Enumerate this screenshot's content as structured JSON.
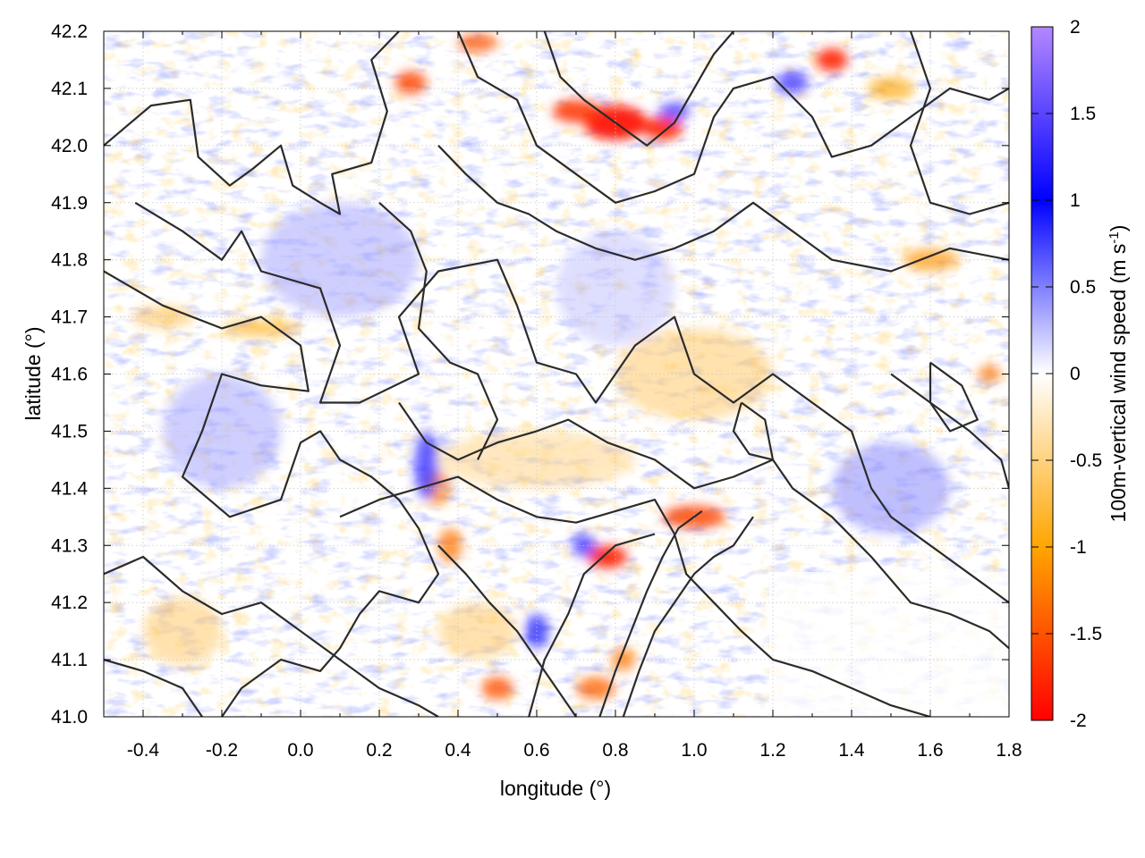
{
  "chart_data": {
    "type": "heatmap",
    "xlabel": "longitude (°)",
    "ylabel": "latitude (°)",
    "colorbar_label": "100m-vertical wind speed (m s",
    "colorbar_label_sup": "-1",
    "colorbar_label_end": ")",
    "xlim": [
      -0.5,
      1.8
    ],
    "ylim": [
      41.0,
      42.2
    ],
    "x_ticks": [
      "-0.4",
      "-0.2",
      "0.0",
      "0.2",
      "0.4",
      "0.6",
      "0.8",
      "1.0",
      "1.2",
      "1.4",
      "1.6",
      "1.8"
    ],
    "x_tick_values": [
      -0.4,
      -0.2,
      0.0,
      0.2,
      0.4,
      0.6,
      0.8,
      1.0,
      1.2,
      1.4,
      1.6,
      1.8
    ],
    "y_ticks": [
      "41.0",
      "41.1",
      "41.2",
      "41.3",
      "41.4",
      "41.5",
      "41.6",
      "41.7",
      "41.8",
      "41.9",
      "42.0",
      "42.1",
      "42.2"
    ],
    "y_tick_values": [
      41.0,
      41.1,
      41.2,
      41.3,
      41.4,
      41.5,
      41.6,
      41.7,
      41.8,
      41.9,
      42.0,
      42.1,
      42.2
    ],
    "colorbar_ticks": [
      "2",
      "1.5",
      "1",
      "0.5",
      "0",
      "-0.5",
      "-1",
      "-1.5",
      "-2"
    ],
    "colorbar_tick_values": [
      2,
      1.5,
      1,
      0.5,
      0,
      -0.5,
      -1,
      -1.5,
      -2
    ],
    "zlim": [
      -2,
      2
    ],
    "grid": true,
    "colormap": [
      {
        "value": -2.0,
        "color": "#ff0000"
      },
      {
        "value": -1.0,
        "color": "#ffa500"
      },
      {
        "value": 0.0,
        "color": "#ffffff"
      },
      {
        "value": 1.0,
        "color": "#0000ff"
      },
      {
        "value": 2.0,
        "color": "#b388ff"
      }
    ],
    "contour_color": "#2b2b2b",
    "features": [
      {
        "lon": 0.8,
        "lat": 42.04,
        "value": -1.9,
        "rx": 0.08,
        "ry": 0.03
      },
      {
        "lon": 0.7,
        "lat": 42.06,
        "value": -1.7,
        "rx": 0.06,
        "ry": 0.02
      },
      {
        "lon": 0.92,
        "lat": 42.03,
        "value": -1.8,
        "rx": 0.05,
        "ry": 0.02
      },
      {
        "lon": 0.95,
        "lat": 42.06,
        "value": 1.3,
        "rx": 0.04,
        "ry": 0.015
      },
      {
        "lon": 0.28,
        "lat": 42.11,
        "value": -1.6,
        "rx": 0.04,
        "ry": 0.02
      },
      {
        "lon": 0.45,
        "lat": 42.18,
        "value": -1.5,
        "rx": 0.05,
        "ry": 0.015
      },
      {
        "lon": 1.35,
        "lat": 42.15,
        "value": -1.8,
        "rx": 0.04,
        "ry": 0.02
      },
      {
        "lon": 1.25,
        "lat": 42.11,
        "value": 1.3,
        "rx": 0.04,
        "ry": 0.02
      },
      {
        "lon": 1.5,
        "lat": 42.1,
        "value": -1.0,
        "rx": 0.06,
        "ry": 0.02
      },
      {
        "lon": 0.78,
        "lat": 41.28,
        "value": -1.8,
        "rx": 0.05,
        "ry": 0.02
      },
      {
        "lon": 1.0,
        "lat": 41.35,
        "value": -1.6,
        "rx": 0.08,
        "ry": 0.02
      },
      {
        "lon": 0.72,
        "lat": 41.3,
        "value": 1.3,
        "rx": 0.03,
        "ry": 0.02
      },
      {
        "lon": 0.38,
        "lat": 41.3,
        "value": -1.3,
        "rx": 0.03,
        "ry": 0.03
      },
      {
        "lon": 0.35,
        "lat": 41.4,
        "value": -1.2,
        "rx": 0.03,
        "ry": 0.03
      },
      {
        "lon": 0.32,
        "lat": 41.44,
        "value": 1.2,
        "rx": 0.03,
        "ry": 0.06
      },
      {
        "lon": 0.5,
        "lat": 41.05,
        "value": -1.5,
        "rx": 0.04,
        "ry": 0.02
      },
      {
        "lon": 0.75,
        "lat": 41.05,
        "value": -1.4,
        "rx": 0.05,
        "ry": 0.02
      },
      {
        "lon": 0.82,
        "lat": 41.1,
        "value": -1.3,
        "rx": 0.03,
        "ry": 0.02
      },
      {
        "lon": 0.6,
        "lat": 41.15,
        "value": 1.0,
        "rx": 0.03,
        "ry": 0.03
      },
      {
        "lon": 1.6,
        "lat": 41.8,
        "value": -1.1,
        "rx": 0.07,
        "ry": 0.02
      },
      {
        "lon": 1.75,
        "lat": 41.6,
        "value": -1.3,
        "rx": 0.03,
        "ry": 0.015
      },
      {
        "lon": 1.0,
        "lat": 41.6,
        "value": -0.6,
        "rx": 0.2,
        "ry": 0.08
      },
      {
        "lon": 0.6,
        "lat": 41.45,
        "value": -0.5,
        "rx": 0.25,
        "ry": 0.05
      },
      {
        "lon": -0.2,
        "lat": 41.5,
        "value": 0.4,
        "rx": 0.15,
        "ry": 0.1
      },
      {
        "lon": 0.1,
        "lat": 41.8,
        "value": 0.4,
        "rx": 0.2,
        "ry": 0.1
      },
      {
        "lon": 0.8,
        "lat": 41.75,
        "value": 0.3,
        "rx": 0.15,
        "ry": 0.1
      },
      {
        "lon": 1.5,
        "lat": 41.4,
        "value": 0.5,
        "rx": 0.15,
        "ry": 0.08
      },
      {
        "lon": -0.3,
        "lat": 41.15,
        "value": -0.6,
        "rx": 0.1,
        "ry": 0.06
      },
      {
        "lon": 0.45,
        "lat": 41.15,
        "value": -0.6,
        "rx": 0.1,
        "ry": 0.05
      },
      {
        "lon": -0.1,
        "lat": 41.68,
        "value": -0.9,
        "rx": 0.1,
        "ry": 0.015
      },
      {
        "lon": -0.35,
        "lat": 41.7,
        "value": -0.7,
        "rx": 0.08,
        "ry": 0.02
      }
    ],
    "contours": [
      [
        [
          -0.5,
          42.0
        ],
        [
          -0.38,
          42.07
        ],
        [
          -0.28,
          42.08
        ],
        [
          -0.26,
          41.98
        ],
        [
          -0.18,
          41.93
        ],
        [
          -0.12,
          41.96
        ],
        [
          -0.05,
          42.0
        ],
        [
          -0.02,
          41.93
        ],
        [
          0.05,
          41.9
        ],
        [
          0.1,
          41.88
        ],
        [
          0.08,
          41.95
        ],
        [
          0.18,
          41.97
        ],
        [
          0.22,
          42.06
        ],
        [
          0.18,
          42.15
        ],
        [
          0.25,
          42.2
        ]
      ],
      [
        [
          -0.5,
          41.78
        ],
        [
          -0.35,
          41.72
        ],
        [
          -0.2,
          41.68
        ],
        [
          -0.1,
          41.7
        ],
        [
          0.0,
          41.65
        ],
        [
          0.02,
          41.57
        ],
        [
          -0.1,
          41.58
        ],
        [
          -0.2,
          41.6
        ],
        [
          -0.25,
          41.5
        ],
        [
          -0.3,
          41.42
        ],
        [
          -0.18,
          41.35
        ],
        [
          -0.05,
          41.38
        ],
        [
          0.0,
          41.48
        ],
        [
          0.05,
          41.5
        ],
        [
          0.1,
          41.45
        ],
        [
          0.18,
          41.42
        ],
        [
          0.25,
          41.38
        ],
        [
          0.3,
          41.33
        ],
        [
          0.35,
          41.25
        ],
        [
          0.3,
          41.2
        ],
        [
          0.2,
          41.22
        ],
        [
          0.15,
          41.18
        ],
        [
          0.1,
          41.12
        ],
        [
          0.05,
          41.08
        ],
        [
          -0.05,
          41.1
        ],
        [
          -0.15,
          41.05
        ],
        [
          -0.2,
          41.0
        ]
      ],
      [
        [
          -0.42,
          41.9
        ],
        [
          -0.3,
          41.85
        ],
        [
          -0.2,
          41.8
        ],
        [
          -0.15,
          41.85
        ],
        [
          -0.1,
          41.78
        ],
        [
          0.05,
          41.75
        ],
        [
          0.1,
          41.65
        ],
        [
          0.05,
          41.55
        ],
        [
          0.15,
          41.55
        ],
        [
          0.3,
          41.6
        ],
        [
          0.25,
          41.7
        ],
        [
          0.35,
          41.78
        ],
        [
          0.5,
          41.8
        ],
        [
          0.55,
          41.72
        ],
        [
          0.6,
          41.62
        ],
        [
          0.7,
          41.6
        ],
        [
          0.75,
          41.55
        ],
        [
          0.85,
          41.65
        ],
        [
          0.95,
          41.7
        ],
        [
          1.0,
          41.6
        ],
        [
          1.1,
          41.55
        ],
        [
          1.2,
          41.6
        ],
        [
          1.3,
          41.55
        ],
        [
          1.4,
          41.5
        ],
        [
          1.45,
          41.4
        ],
        [
          1.5,
          41.35
        ],
        [
          1.6,
          41.3
        ],
        [
          1.7,
          41.25
        ],
        [
          1.8,
          41.2
        ]
      ],
      [
        [
          0.25,
          41.55
        ],
        [
          0.32,
          41.48
        ],
        [
          0.4,
          41.45
        ],
        [
          0.5,
          41.48
        ],
        [
          0.6,
          41.5
        ],
        [
          0.68,
          41.52
        ],
        [
          0.78,
          41.48
        ],
        [
          0.9,
          41.45
        ],
        [
          1.0,
          41.4
        ],
        [
          1.1,
          41.42
        ],
        [
          1.2,
          41.45
        ],
        [
          1.25,
          41.4
        ],
        [
          1.35,
          41.35
        ],
        [
          1.45,
          41.28
        ],
        [
          1.55,
          41.2
        ],
        [
          1.65,
          41.18
        ],
        [
          1.75,
          41.15
        ],
        [
          1.8,
          41.12
        ]
      ],
      [
        [
          0.1,
          41.35
        ],
        [
          0.2,
          41.38
        ],
        [
          0.3,
          41.4
        ],
        [
          0.4,
          41.42
        ],
        [
          0.5,
          41.38
        ],
        [
          0.6,
          41.35
        ],
        [
          0.7,
          41.34
        ],
        [
          0.8,
          41.36
        ],
        [
          0.9,
          41.38
        ],
        [
          0.95,
          41.32
        ],
        [
          0.98,
          41.25
        ],
        [
          1.05,
          41.2
        ],
        [
          1.12,
          41.15
        ],
        [
          1.2,
          41.1
        ],
        [
          1.3,
          41.08
        ],
        [
          1.4,
          41.05
        ],
        [
          1.5,
          41.02
        ],
        [
          1.6,
          41.0
        ]
      ],
      [
        [
          0.35,
          41.3
        ],
        [
          0.42,
          41.25
        ],
        [
          0.48,
          41.2
        ],
        [
          0.55,
          41.15
        ],
        [
          0.6,
          41.1
        ],
        [
          0.65,
          41.05
        ],
        [
          0.7,
          41.0
        ]
      ],
      [
        [
          0.82,
          41.0
        ],
        [
          0.86,
          41.08
        ],
        [
          0.9,
          41.15
        ],
        [
          0.95,
          41.2
        ],
        [
          1.0,
          41.25
        ],
        [
          1.05,
          41.28
        ],
        [
          1.1,
          41.3
        ],
        [
          1.15,
          41.35
        ]
      ],
      [
        [
          0.76,
          41.0
        ],
        [
          0.8,
          41.08
        ],
        [
          0.84,
          41.15
        ],
        [
          0.88,
          41.22
        ],
        [
          0.92,
          41.28
        ],
        [
          0.96,
          41.33
        ],
        [
          1.02,
          41.36
        ]
      ],
      [
        [
          0.58,
          41.0
        ],
        [
          0.62,
          41.1
        ],
        [
          0.68,
          41.18
        ],
        [
          0.72,
          41.25
        ],
        [
          0.8,
          41.3
        ],
        [
          0.9,
          41.32
        ]
      ],
      [
        [
          0.4,
          42.2
        ],
        [
          0.45,
          42.12
        ],
        [
          0.55,
          42.08
        ],
        [
          0.6,
          42.0
        ],
        [
          0.7,
          41.95
        ],
        [
          0.8,
          41.9
        ],
        [
          0.9,
          41.92
        ],
        [
          1.0,
          41.95
        ],
        [
          1.05,
          42.05
        ],
        [
          1.1,
          42.1
        ],
        [
          1.2,
          42.12
        ],
        [
          1.3,
          42.05
        ],
        [
          1.35,
          41.98
        ],
        [
          1.45,
          42.0
        ],
        [
          1.55,
          42.05
        ],
        [
          1.65,
          42.1
        ],
        [
          1.75,
          42.08
        ],
        [
          1.8,
          42.1
        ]
      ],
      [
        [
          0.62,
          42.2
        ],
        [
          0.66,
          42.12
        ],
        [
          0.72,
          42.08
        ],
        [
          0.8,
          42.04
        ],
        [
          0.88,
          42.0
        ],
        [
          0.95,
          42.04
        ],
        [
          1.0,
          42.1
        ],
        [
          1.05,
          42.16
        ],
        [
          1.1,
          42.2
        ]
      ],
      [
        [
          0.35,
          42.0
        ],
        [
          0.42,
          41.95
        ],
        [
          0.5,
          41.9
        ],
        [
          0.58,
          41.88
        ],
        [
          0.65,
          41.85
        ],
        [
          0.75,
          41.82
        ],
        [
          0.85,
          41.8
        ],
        [
          0.95,
          41.82
        ],
        [
          1.05,
          41.85
        ],
        [
          1.15,
          41.9
        ],
        [
          1.25,
          41.85
        ],
        [
          1.35,
          41.8
        ],
        [
          1.5,
          41.78
        ],
        [
          1.65,
          41.82
        ],
        [
          1.8,
          41.8
        ]
      ],
      [
        [
          0.2,
          41.9
        ],
        [
          0.28,
          41.85
        ],
        [
          0.32,
          41.78
        ],
        [
          0.3,
          41.68
        ],
        [
          0.38,
          41.62
        ],
        [
          0.45,
          41.6
        ],
        [
          0.5,
          41.52
        ],
        [
          0.45,
          41.45
        ]
      ],
      [
        [
          1.5,
          41.6
        ],
        [
          1.6,
          41.55
        ],
        [
          1.7,
          41.5
        ],
        [
          1.78,
          41.45
        ],
        [
          1.8,
          41.4
        ]
      ],
      [
        [
          1.55,
          42.2
        ],
        [
          1.6,
          42.1
        ],
        [
          1.55,
          42.0
        ],
        [
          1.6,
          41.9
        ],
        [
          1.7,
          41.88
        ],
        [
          1.8,
          41.9
        ]
      ],
      [
        [
          -0.5,
          41.25
        ],
        [
          -0.4,
          41.28
        ],
        [
          -0.3,
          41.22
        ],
        [
          -0.2,
          41.18
        ],
        [
          -0.1,
          41.2
        ],
        [
          0.0,
          41.15
        ],
        [
          0.1,
          41.1
        ],
        [
          0.2,
          41.05
        ],
        [
          0.3,
          41.02
        ],
        [
          0.35,
          41.0
        ]
      ],
      [
        [
          -0.5,
          41.1
        ],
        [
          -0.4,
          41.08
        ],
        [
          -0.3,
          41.05
        ],
        [
          -0.25,
          41.0
        ]
      ],
      [
        [
          1.12,
          41.55
        ],
        [
          1.18,
          41.52
        ],
        [
          1.2,
          41.45
        ],
        [
          1.14,
          41.46
        ],
        [
          1.1,
          41.5
        ],
        [
          1.12,
          41.55
        ]
      ],
      [
        [
          1.6,
          41.62
        ],
        [
          1.68,
          41.58
        ],
        [
          1.72,
          41.52
        ],
        [
          1.65,
          41.5
        ],
        [
          1.6,
          41.55
        ],
        [
          1.6,
          41.62
        ]
      ]
    ]
  }
}
